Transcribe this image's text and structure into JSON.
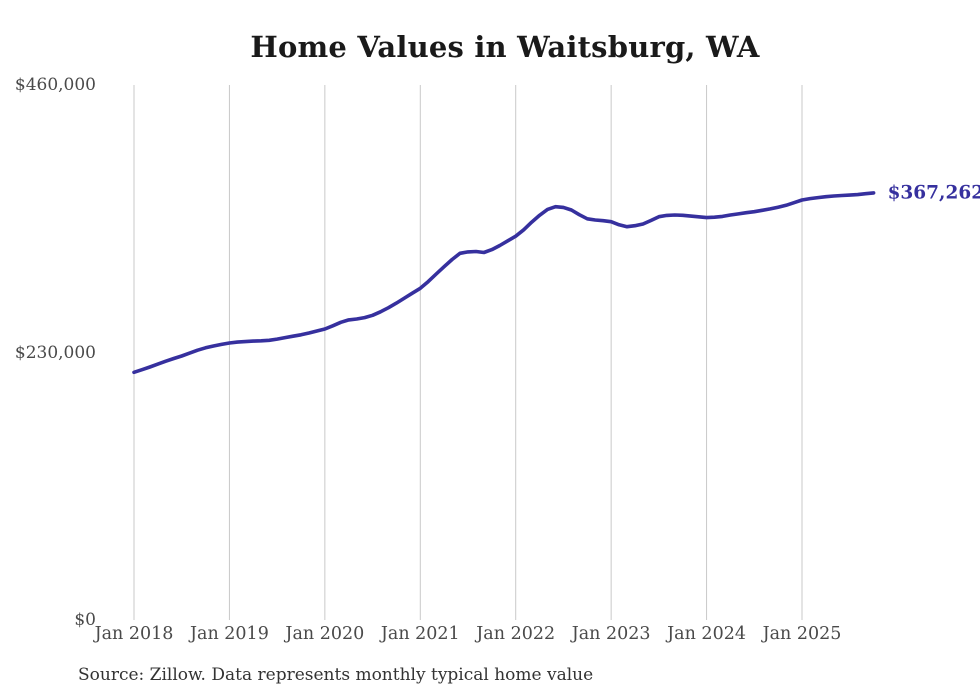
{
  "chart_data": {
    "type": "line",
    "title": "Home Values in Waitsburg, WA",
    "source_note": "Source: Zillow. Data represents monthly typical home value",
    "end_label": "$367,262",
    "unit": "USD",
    "ylim": [
      0,
      460000
    ],
    "grid": "vertical-only",
    "colors": {
      "line": "#36309e",
      "gridline": "#c9c9c9",
      "title_text": "#1a1a1a",
      "axis_text": "#4a4a4a",
      "source_text": "#333333"
    },
    "y_axis": {
      "ticks": [
        {
          "label": "$460,000",
          "value": 460000
        },
        {
          "label": "$230,000",
          "value": 230000
        },
        {
          "label": "$0",
          "value": 0
        }
      ]
    },
    "x_axis": {
      "tick_labels": [
        "Jan 2018",
        "Jan 2019",
        "Jan 2020",
        "Jan 2021",
        "Jan 2022",
        "Jan 2023",
        "Jan 2024",
        "Jan 2025"
      ],
      "months_between_ticks": 12
    },
    "series": [
      {
        "name": "Monthly typical home value",
        "start_month": "Jan 2018",
        "end_month": "Oct 2025",
        "frequency": "monthly",
        "values": [
          213000,
          215200,
          217500,
          220000,
          222500,
          224800,
          227000,
          229500,
          232000,
          234000,
          235600,
          237000,
          238200,
          238900,
          239400,
          239800,
          240100,
          240500,
          241500,
          242800,
          244000,
          245200,
          246800,
          248500,
          250200,
          253000,
          256000,
          258000,
          258800,
          260000,
          262000,
          265000,
          268500,
          272500,
          276800,
          281000,
          285200,
          291000,
          297500,
          303800,
          310000,
          315300,
          316500,
          316800,
          316000,
          318500,
          322000,
          326000,
          330000,
          335500,
          342000,
          348000,
          353000,
          355400,
          354800,
          352500,
          348500,
          345000,
          343900,
          343300,
          342500,
          339800,
          338200,
          339000,
          340500,
          343500,
          346800,
          347900,
          348200,
          348000,
          347300,
          346700,
          346000,
          346300,
          347000,
          348200,
          349200,
          350200,
          351100,
          352300,
          353500,
          354900,
          356600,
          358800,
          361100,
          362300,
          363200,
          364000,
          364600,
          365000,
          365300,
          365800,
          366500,
          367262
        ]
      }
    ]
  }
}
